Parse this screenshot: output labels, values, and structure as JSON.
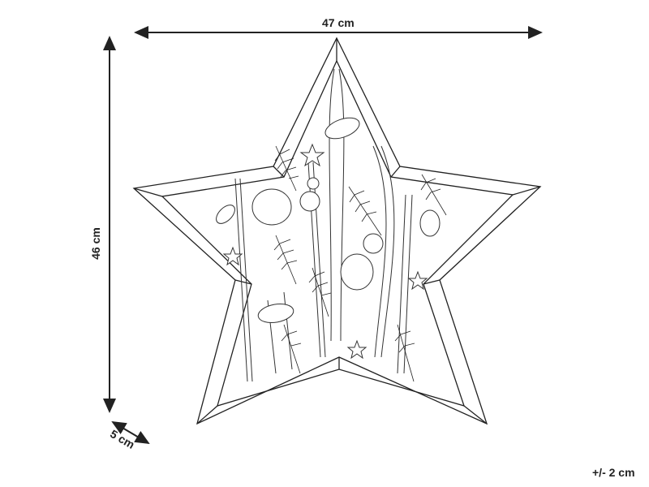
{
  "dimensions": {
    "width": "47 cm",
    "height": "46 cm",
    "depth": "5 cm",
    "tolerance": "+/- 2 cm"
  },
  "colors": {
    "line": "#222222",
    "background": "#ffffff"
  }
}
